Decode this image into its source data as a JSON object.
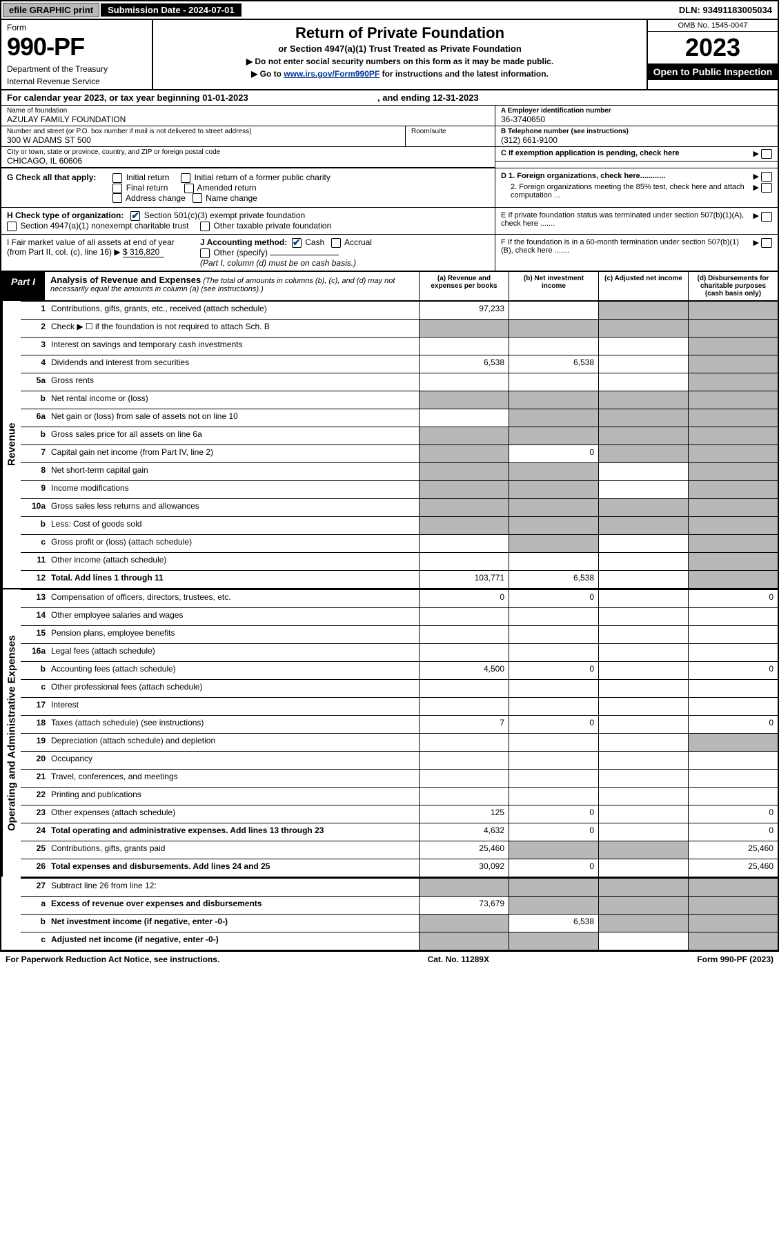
{
  "topbar": {
    "efile": "efile GRAPHIC print",
    "submission": "Submission Date - 2024-07-01",
    "dln": "DLN: 93491183005034"
  },
  "header": {
    "form": "Form",
    "form_num": "990-PF",
    "dept": "Department of the Treasury",
    "irs": "Internal Revenue Service",
    "title": "Return of Private Foundation",
    "subtitle": "or Section 4947(a)(1) Trust Treated as Private Foundation",
    "bullet1": "▶ Do not enter social security numbers on this form as it may be made public.",
    "bullet2_pre": "▶ Go to ",
    "bullet2_link": "www.irs.gov/Form990PF",
    "bullet2_post": " for instructions and the latest information.",
    "omb": "OMB No. 1545-0047",
    "year": "2023",
    "open": "Open to Public Inspection"
  },
  "calyear": {
    "pre": "For calendar year 2023, or tax year beginning ",
    "begin": "01-01-2023",
    "mid": ", and ending ",
    "end": "12-31-2023"
  },
  "info": {
    "name_lbl": "Name of foundation",
    "name": "AZULAY FAMILY FOUNDATION",
    "addr_lbl": "Number and street (or P.O. box number if mail is not delivered to street address)",
    "addr": "300 W ADAMS ST 500",
    "room_lbl": "Room/suite",
    "city_lbl": "City or town, state or province, country, and ZIP or foreign postal code",
    "city": "CHICAGO, IL  60606",
    "a_lbl": "A Employer identification number",
    "a_val": "36-3740650",
    "b_lbl": "B Telephone number (see instructions)",
    "b_val": "(312) 661-9100",
    "c_lbl": "C If exemption application is pending, check here",
    "d1": "D 1. Foreign organizations, check here............",
    "d2": "2. Foreign organizations meeting the 85% test, check here and attach computation ...",
    "e": "E  If private foundation status was terminated under section 507(b)(1)(A), check here .......",
    "f": "F  If the foundation is in a 60-month termination under section 507(b)(1)(B), check here .......",
    "g_lbl": "G Check all that apply:",
    "g_opts": [
      "Initial return",
      "Initial return of a former public charity",
      "Final return",
      "Amended return",
      "Address change",
      "Name change"
    ],
    "h_lbl": "H Check type of organization:",
    "h_opt1": "Section 501(c)(3) exempt private foundation",
    "h_opt2": "Section 4947(a)(1) nonexempt charitable trust",
    "h_opt3": "Other taxable private foundation",
    "i_lbl": "I Fair market value of all assets at end of year (from Part II, col. (c), line 16) ▶",
    "i_val": "$  316,820",
    "j_lbl": "J Accounting method:",
    "j_cash": "Cash",
    "j_accrual": "Accrual",
    "j_other": "Other (specify)",
    "j_note": "(Part I, column (d) must be on cash basis.)"
  },
  "part1": {
    "label": "Part I",
    "title": "Analysis of Revenue and Expenses",
    "note": " (The total of amounts in columns (b), (c), and (d) may not necessarily equal the amounts in column (a) (see instructions).)",
    "col_a": "(a)   Revenue and expenses per books",
    "col_b": "(b)   Net investment income",
    "col_c": "(c)   Adjusted net income",
    "col_d": "(d)   Disbursements for charitable purposes (cash basis only)"
  },
  "side": {
    "revenue": "Revenue",
    "expenses": "Operating and Administrative Expenses"
  },
  "rows": [
    {
      "n": "1",
      "d": "Contributions, gifts, grants, etc., received (attach schedule)",
      "a": "97,233",
      "b": "",
      "c": "sh",
      "dcol": "sh"
    },
    {
      "n": "2",
      "d": "Check ▶ ☐ if the foundation is not required to attach Sch. B",
      "a": "sh",
      "b": "sh",
      "c": "sh",
      "dcol": "sh",
      "nodots": true
    },
    {
      "n": "3",
      "d": "Interest on savings and temporary cash investments",
      "a": "",
      "b": "",
      "c": "",
      "dcol": "sh"
    },
    {
      "n": "4",
      "d": "Dividends and interest from securities",
      "a": "6,538",
      "b": "6,538",
      "c": "",
      "dcol": "sh"
    },
    {
      "n": "5a",
      "d": "Gross rents",
      "a": "",
      "b": "",
      "c": "",
      "dcol": "sh"
    },
    {
      "n": "b",
      "d": "Net rental income or (loss)",
      "a": "sh",
      "b": "sh",
      "c": "sh",
      "dcol": "sh",
      "inset": true
    },
    {
      "n": "6a",
      "d": "Net gain or (loss) from sale of assets not on line 10",
      "a": "",
      "b": "sh",
      "c": "sh",
      "dcol": "sh"
    },
    {
      "n": "b",
      "d": "Gross sales price for all assets on line 6a",
      "a": "sh",
      "b": "sh",
      "c": "sh",
      "dcol": "sh",
      "inset": true
    },
    {
      "n": "7",
      "d": "Capital gain net income (from Part IV, line 2)",
      "a": "sh",
      "b": "0",
      "c": "sh",
      "dcol": "sh"
    },
    {
      "n": "8",
      "d": "Net short-term capital gain",
      "a": "sh",
      "b": "sh",
      "c": "",
      "dcol": "sh"
    },
    {
      "n": "9",
      "d": "Income modifications",
      "a": "sh",
      "b": "sh",
      "c": "",
      "dcol": "sh"
    },
    {
      "n": "10a",
      "d": "Gross sales less returns and allowances",
      "a": "sh",
      "b": "sh",
      "c": "sh",
      "dcol": "sh",
      "inset": true
    },
    {
      "n": "b",
      "d": "Less: Cost of goods sold",
      "a": "sh",
      "b": "sh",
      "c": "sh",
      "dcol": "sh",
      "inset": true
    },
    {
      "n": "c",
      "d": "Gross profit or (loss) (attach schedule)",
      "a": "",
      "b": "sh",
      "c": "",
      "dcol": "sh"
    },
    {
      "n": "11",
      "d": "Other income (attach schedule)",
      "a": "",
      "b": "",
      "c": "",
      "dcol": "sh"
    },
    {
      "n": "12",
      "d": "Total. Add lines 1 through 11",
      "a": "103,771",
      "b": "6,538",
      "c": "",
      "dcol": "sh",
      "bold": true
    }
  ],
  "exp_rows": [
    {
      "n": "13",
      "d": "Compensation of officers, directors, trustees, etc.",
      "a": "0",
      "b": "0",
      "c": "",
      "dcol": "0"
    },
    {
      "n": "14",
      "d": "Other employee salaries and wages",
      "a": "",
      "b": "",
      "c": "",
      "dcol": ""
    },
    {
      "n": "15",
      "d": "Pension plans, employee benefits",
      "a": "",
      "b": "",
      "c": "",
      "dcol": ""
    },
    {
      "n": "16a",
      "d": "Legal fees (attach schedule)",
      "a": "",
      "b": "",
      "c": "",
      "dcol": ""
    },
    {
      "n": "b",
      "d": "Accounting fees (attach schedule)",
      "a": "4,500",
      "b": "0",
      "c": "",
      "dcol": "0"
    },
    {
      "n": "c",
      "d": "Other professional fees (attach schedule)",
      "a": "",
      "b": "",
      "c": "",
      "dcol": ""
    },
    {
      "n": "17",
      "d": "Interest",
      "a": "",
      "b": "",
      "c": "",
      "dcol": ""
    },
    {
      "n": "18",
      "d": "Taxes (attach schedule) (see instructions)",
      "a": "7",
      "b": "0",
      "c": "",
      "dcol": "0"
    },
    {
      "n": "19",
      "d": "Depreciation (attach schedule) and depletion",
      "a": "",
      "b": "",
      "c": "",
      "dcol": "sh"
    },
    {
      "n": "20",
      "d": "Occupancy",
      "a": "",
      "b": "",
      "c": "",
      "dcol": ""
    },
    {
      "n": "21",
      "d": "Travel, conferences, and meetings",
      "a": "",
      "b": "",
      "c": "",
      "dcol": ""
    },
    {
      "n": "22",
      "d": "Printing and publications",
      "a": "",
      "b": "",
      "c": "",
      "dcol": ""
    },
    {
      "n": "23",
      "d": "Other expenses (attach schedule)",
      "a": "125",
      "b": "0",
      "c": "",
      "dcol": "0"
    },
    {
      "n": "24",
      "d": "Total operating and administrative expenses. Add lines 13 through 23",
      "a": "4,632",
      "b": "0",
      "c": "",
      "dcol": "0",
      "bold": true
    },
    {
      "n": "25",
      "d": "Contributions, gifts, grants paid",
      "a": "25,460",
      "b": "sh",
      "c": "sh",
      "dcol": "25,460"
    },
    {
      "n": "26",
      "d": "Total expenses and disbursements. Add lines 24 and 25",
      "a": "30,092",
      "b": "0",
      "c": "",
      "dcol": "25,460",
      "bold": true
    }
  ],
  "bottom_rows": [
    {
      "n": "27",
      "d": "Subtract line 26 from line 12:",
      "a": "sh",
      "b": "sh",
      "c": "sh",
      "dcol": "sh"
    },
    {
      "n": "a",
      "d": "Excess of revenue over expenses and disbursements",
      "a": "73,679",
      "b": "sh",
      "c": "sh",
      "dcol": "sh",
      "bold": true
    },
    {
      "n": "b",
      "d": "Net investment income (if negative, enter -0-)",
      "a": "sh",
      "b": "6,538",
      "c": "sh",
      "dcol": "sh",
      "bold": true
    },
    {
      "n": "c",
      "d": "Adjusted net income (if negative, enter -0-)",
      "a": "sh",
      "b": "sh",
      "c": "",
      "dcol": "sh",
      "bold": true
    }
  ],
  "footer": {
    "left": "For Paperwork Reduction Act Notice, see instructions.",
    "mid": "Cat. No. 11289X",
    "right": "Form 990-PF (2023)"
  }
}
